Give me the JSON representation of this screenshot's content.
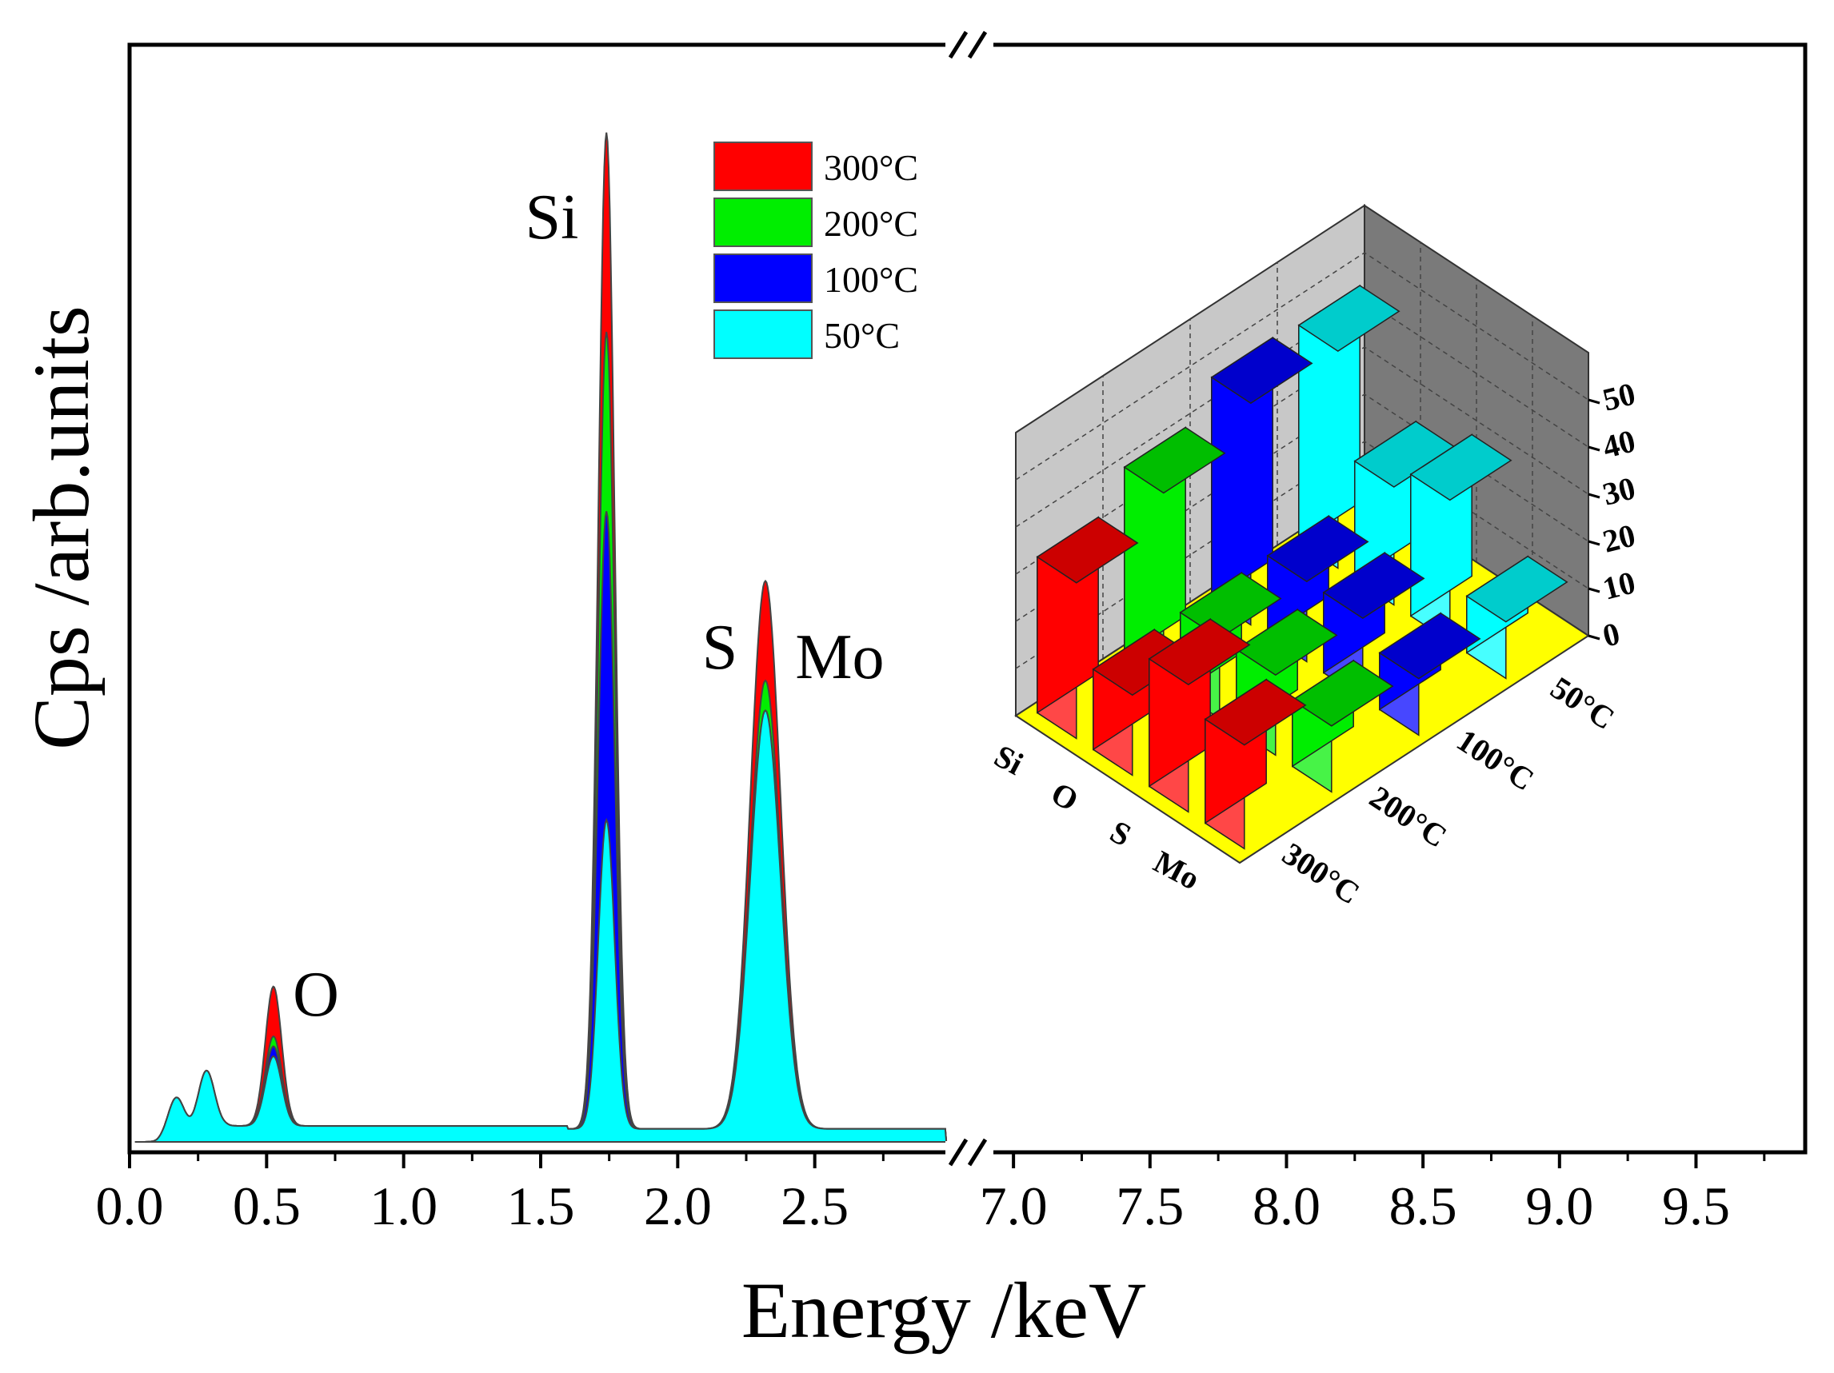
{
  "chart_data": {
    "type": "area",
    "title": "",
    "xlabel": "Energy /keV",
    "ylabel": "Cps /arb.units",
    "x_segments": [
      {
        "range": [
          0.0,
          3.0
        ],
        "ticks": [
          "0.0",
          "0.5",
          "1.0",
          "1.5",
          "2.0",
          "2.5"
        ]
      },
      {
        "range": [
          6.9,
          9.9
        ],
        "ticks": [
          "7.0",
          "7.5",
          "8.0",
          "8.5",
          "9.0",
          "9.5"
        ]
      }
    ],
    "axis_break": "//",
    "ylim": [
      0,
      100
    ],
    "peak_labels": [
      {
        "text": "O",
        "energy": 0.53
      },
      {
        "text": "Si",
        "energy": 1.74
      },
      {
        "text": "S",
        "energy": 2.31
      },
      {
        "text": "Mo",
        "energy": 2.29
      }
    ],
    "series": [
      {
        "name": "300°C",
        "color": "#ff0000",
        "peaks": [
          {
            "e": 0.17,
            "h": 4
          },
          {
            "e": 0.28,
            "h": 6
          },
          {
            "e": 0.525,
            "h": 14
          },
          {
            "e": 1.74,
            "h": 100
          },
          {
            "e": 2.32,
            "h": 55
          }
        ]
      },
      {
        "name": "200°C",
        "color": "#00ee00",
        "peaks": [
          {
            "e": 0.17,
            "h": 4
          },
          {
            "e": 0.28,
            "h": 6
          },
          {
            "e": 0.525,
            "h": 9
          },
          {
            "e": 1.74,
            "h": 80
          },
          {
            "e": 2.32,
            "h": 45
          }
        ]
      },
      {
        "name": "100°C",
        "color": "#0000ff",
        "peaks": [
          {
            "e": 0.17,
            "h": 4
          },
          {
            "e": 0.28,
            "h": 6
          },
          {
            "e": 0.525,
            "h": 8
          },
          {
            "e": 1.74,
            "h": 62
          },
          {
            "e": 2.32,
            "h": 42
          }
        ]
      },
      {
        "name": "50°C",
        "color": "#00ffff",
        "peaks": [
          {
            "e": 0.17,
            "h": 4
          },
          {
            "e": 0.28,
            "h": 6
          },
          {
            "e": 0.525,
            "h": 7
          },
          {
            "e": 1.74,
            "h": 31
          },
          {
            "e": 2.32,
            "h": 42
          }
        ]
      }
    ],
    "inset": {
      "type": "bar3d",
      "z_ticks": [
        "0",
        "10",
        "20",
        "30",
        "40",
        "50"
      ],
      "zlim": [
        0,
        55
      ],
      "elements": [
        "Si",
        "O",
        "S",
        "Mo"
      ],
      "temperatures": [
        "50°C",
        "100°C",
        "200°C",
        "300°C"
      ],
      "values": {
        "300°C": {
          "Si": 33,
          "O": 17,
          "S": 27,
          "Mo": 22
        },
        "200°C": {
          "Si": 40,
          "O": 17,
          "S": 17,
          "Mo": 14
        },
        "100°C": {
          "Si": 47,
          "O": 17,
          "S": 17,
          "Mo": 12
        },
        "50°C": {
          "Si": 46,
          "O": 25,
          "S": 30,
          "Mo": 12
        }
      },
      "colors": {
        "300°C": "#ff0000",
        "200°C": "#00ee00",
        "100°C": "#0000ff",
        "50°C": "#00ffff"
      },
      "floor_color": "#ffff00",
      "wall_color": "#c8c8c8"
    }
  }
}
